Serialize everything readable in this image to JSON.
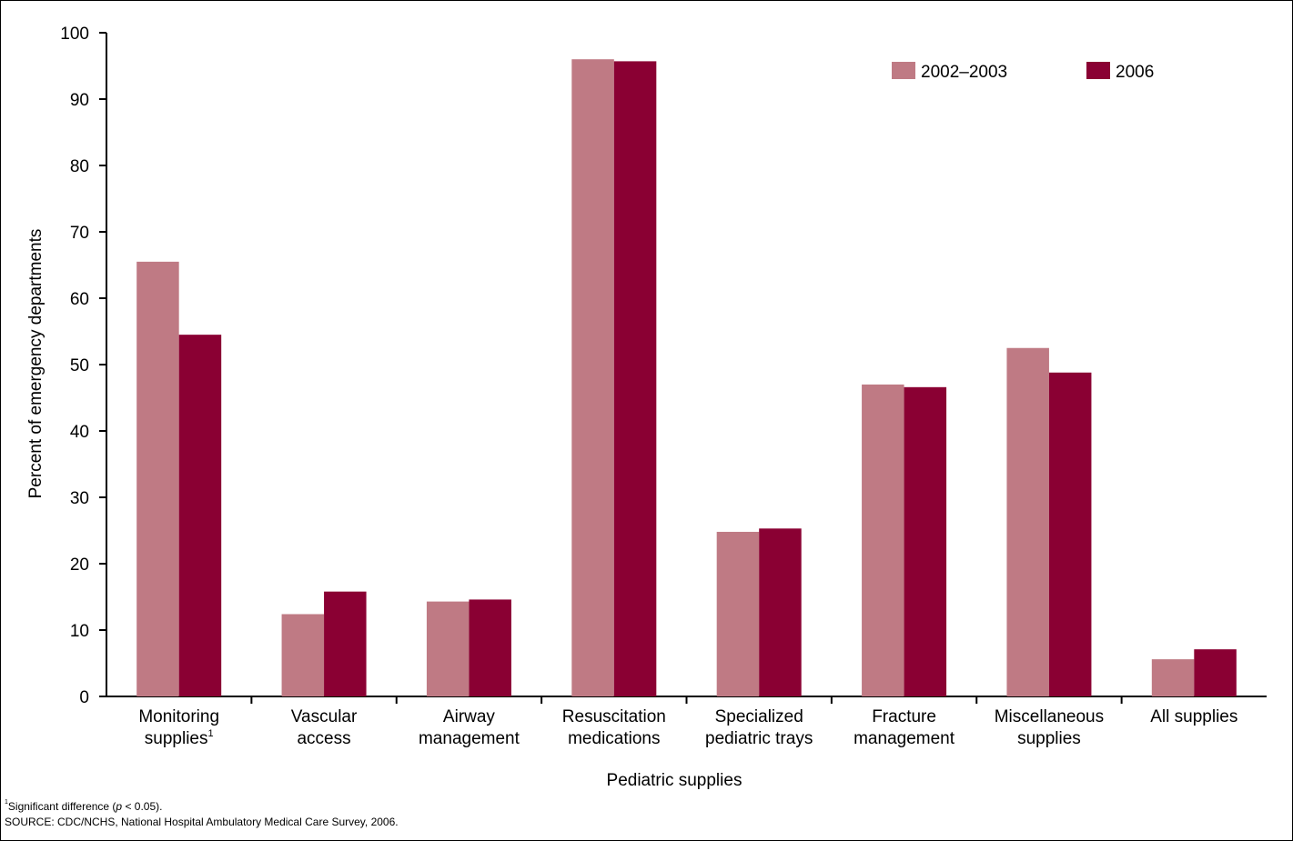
{
  "chart_data": {
    "type": "bar",
    "categories": [
      [
        "Monitoring",
        "supplies"
      ],
      [
        "Vascular",
        "access"
      ],
      [
        "Airway",
        "management"
      ],
      [
        "Resuscitation",
        "medications"
      ],
      [
        "Specialized",
        "pediatric trays"
      ],
      [
        "Fracture",
        "management"
      ],
      [
        "Miscellaneous",
        "supplies"
      ],
      [
        "All supplies"
      ]
    ],
    "category_footnote_marks": [
      "1",
      "",
      "",
      "",
      "",
      "",
      "",
      ""
    ],
    "series": [
      {
        "name": "2002–2003",
        "color": "#bf7a84",
        "values": [
          65.5,
          12.4,
          14.3,
          96.0,
          24.8,
          47.0,
          52.5,
          5.6
        ]
      },
      {
        "name": "2006",
        "color": "#8a0033",
        "values": [
          54.5,
          15.8,
          14.6,
          95.7,
          25.3,
          46.6,
          48.8,
          7.1
        ]
      }
    ],
    "xlabel": "Pediatric supplies",
    "ylabel": "Percent of emergency departments",
    "ylim": [
      0,
      100
    ],
    "yticks": [
      0,
      10,
      20,
      30,
      40,
      50,
      60,
      70,
      80,
      90,
      100
    ],
    "grid": false,
    "legend_position": "top-right"
  },
  "footnotes": {
    "mark": "1",
    "significance_pre": "Significant difference (",
    "significance_p": "p",
    "significance_post": " < 0.05).",
    "source": "SOURCE: CDC/NCHS, National Hospital Ambulatory Medical Care Survey, 2006."
  }
}
